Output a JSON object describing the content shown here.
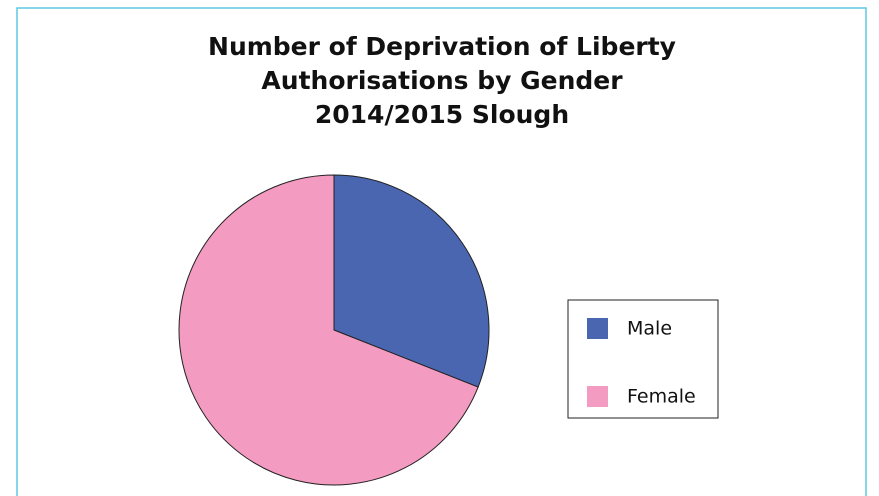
{
  "chart_data": {
    "type": "pie",
    "title": [
      "Number of Deprivation of Liberty",
      "Authorisations by Gender",
      "2014/2015 Slough"
    ],
    "categories": [
      "Male",
      "Female"
    ],
    "values": [
      31,
      69
    ],
    "colors": [
      "#4a66b1",
      "#f49bc2"
    ],
    "legend": "right"
  }
}
